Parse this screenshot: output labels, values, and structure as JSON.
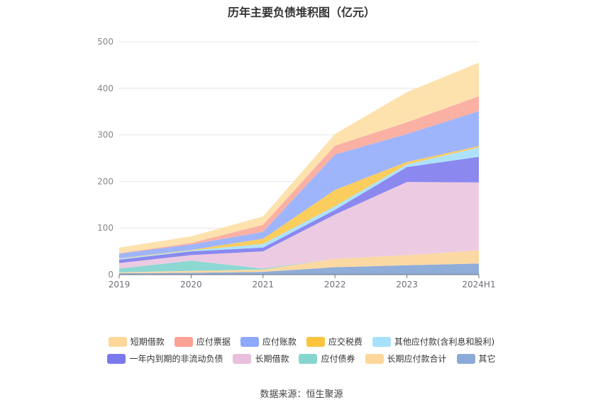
{
  "footer": {
    "source": "数据来源：恒生聚源"
  },
  "chart_data": {
    "type": "area",
    "stacked": true,
    "title": "历年主要负债堆积图（亿元）",
    "xlabel": "",
    "ylabel": "",
    "categories": [
      "2019",
      "2020",
      "2021",
      "2022",
      "2023",
      "2024H1"
    ],
    "yticks": [
      0,
      100,
      200,
      300,
      400,
      500
    ],
    "ylim": [
      0,
      500
    ],
    "grid": true,
    "legend_position": "bottom",
    "series": [
      {
        "name": "其它",
        "color": "#8fadd9",
        "values": [
          3,
          4,
          6,
          16,
          20,
          24
        ]
      },
      {
        "name": "长期应付款合计",
        "color": "#fcd9a3",
        "values": [
          2,
          4,
          5,
          18,
          22,
          28
        ]
      },
      {
        "name": "应付债券",
        "color": "#8dd8d3",
        "values": [
          8,
          22,
          2,
          0,
          0,
          0
        ]
      },
      {
        "name": "长期借款",
        "color": "#eccbe2",
        "values": [
          12,
          12,
          37,
          95,
          157,
          146
        ]
      },
      {
        "name": "一年内到期的非流动负债",
        "color": "#8b88ef",
        "values": [
          7,
          8,
          8,
          10,
          32,
          55
        ]
      },
      {
        "name": "其他应付款(含利息和股利)",
        "color": "#aee2fb",
        "values": [
          2,
          2,
          8,
          8,
          6,
          20
        ]
      },
      {
        "name": "应交税费",
        "color": "#fbcd5d",
        "values": [
          1,
          1,
          11,
          35,
          5,
          3
        ]
      },
      {
        "name": "应付账款",
        "color": "#9fb5fb",
        "values": [
          10,
          12,
          15,
          76,
          60,
          75
        ]
      },
      {
        "name": "应付票据",
        "color": "#fbb0a4",
        "values": [
          1,
          3,
          15,
          19,
          25,
          32
        ]
      },
      {
        "name": "短期借款",
        "color": "#fde2ad",
        "values": [
          12,
          14,
          18,
          25,
          65,
          72
        ]
      }
    ],
    "legend_order": [
      "短期借款",
      "应付票据",
      "应付账款",
      "应交税费",
      "其他应付款(含利息和股利)",
      "一年内到期的非流动负债",
      "长期借款",
      "应付债券",
      "长期应付款合计",
      "其它"
    ],
    "legend_colors": {
      "短期借款": "#fdd79a",
      "应付票据": "#fba294",
      "应付账款": "#8ea8fb",
      "应交税费": "#fbc43c",
      "其他应付款(含利息和股利)": "#a6e0fb",
      "一年内到期的非流动负债": "#7b78ee",
      "长期借款": "#e8bfdc",
      "应付债券": "#85d5d0",
      "长期应付款合计": "#fcd69a",
      "其它": "#8ca9d8"
    }
  }
}
